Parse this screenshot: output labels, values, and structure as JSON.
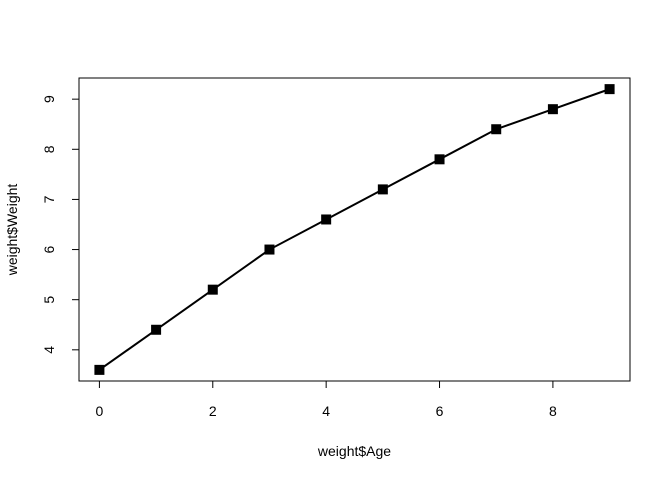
{
  "chart_data": {
    "type": "line",
    "title": "",
    "xlabel": "weight$Age",
    "ylabel": "weight$Weight",
    "x": [
      0,
      1,
      2,
      3,
      4,
      5,
      6,
      7,
      8,
      9
    ],
    "series": [
      {
        "values": [
          3.6,
          4.4,
          5.2,
          6.0,
          6.6,
          7.2,
          7.8,
          8.4,
          8.8,
          9.2
        ]
      }
    ],
    "xlim": [
      -0.36,
      9.36
    ],
    "ylim": [
      3.378,
      9.422
    ],
    "xticks": [
      0,
      2,
      4,
      6,
      8
    ],
    "yticks": [
      4,
      5,
      6,
      7,
      8,
      9
    ],
    "marker": "square",
    "grid": false,
    "line_color": "#000000",
    "marker_color": "#000000"
  }
}
